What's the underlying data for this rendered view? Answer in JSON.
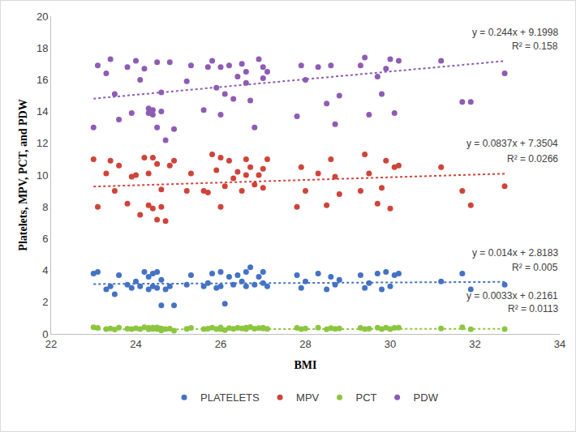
{
  "chart_data": {
    "type": "scatter",
    "x_label": "BMI",
    "y_label": "Platelets, MPV, PCT, and PDW",
    "xlim": [
      22,
      34
    ],
    "xticks": [
      22,
      24,
      26,
      28,
      30,
      32,
      34
    ],
    "ylim": [
      0,
      20
    ],
    "yticks": [
      0,
      2,
      4,
      6,
      8,
      10,
      12,
      14,
      16,
      18,
      20
    ],
    "grid": false,
    "legend": "bottom",
    "marker": "circle",
    "x": [
      23.0,
      23.1,
      23.3,
      23.4,
      23.5,
      23.6,
      23.8,
      23.9,
      24.0,
      24.1,
      24.2,
      24.3,
      24.3,
      24.4,
      24.4,
      24.5,
      24.5,
      24.6,
      24.6,
      24.7,
      24.8,
      24.9,
      25.2,
      25.3,
      25.6,
      25.7,
      25.8,
      25.9,
      26.0,
      26.0,
      26.1,
      26.2,
      26.3,
      26.4,
      26.5,
      26.6,
      26.6,
      26.7,
      26.8,
      26.9,
      27.0,
      27.0,
      27.1,
      27.8,
      27.9,
      28.0,
      28.3,
      28.5,
      28.6,
      28.7,
      28.8,
      29.3,
      29.4,
      29.5,
      29.7,
      29.8,
      29.9,
      30.0,
      30.1,
      30.2,
      31.2,
      31.7,
      31.9,
      32.7
    ],
    "series": [
      {
        "name": "PLATELETS",
        "color": "#4472c4",
        "line_style": "dotted",
        "trendline": {
          "slope": 0.014,
          "intercept": 2.8183,
          "equation": "y = 0.014x + 2.8183",
          "r2": "R² = 0.005"
        },
        "values": [
          3.8,
          3.9,
          2.8,
          3.0,
          2.5,
          3.7,
          3.1,
          2.9,
          3.3,
          3.0,
          3.9,
          2.8,
          3.6,
          3.8,
          3.0,
          2.9,
          3.9,
          3.4,
          1.8,
          2.8,
          3.0,
          1.8,
          3.1,
          3.7,
          3.0,
          3.2,
          3.8,
          2.9,
          3.9,
          3.0,
          1.9,
          3.6,
          3.1,
          3.7,
          3.3,
          3.9,
          3.0,
          4.2,
          3.1,
          3.6,
          3.2,
          3.9,
          3.0,
          3.7,
          2.9,
          3.3,
          3.8,
          2.8,
          3.6,
          3.1,
          3.4,
          3.7,
          2.9,
          3.2,
          3.8,
          2.8,
          3.9,
          3.0,
          3.7,
          3.8,
          3.3,
          3.8,
          2.8,
          3.1
        ]
      },
      {
        "name": "MPV",
        "color": "#d0433a",
        "line_style": "dotted",
        "trendline": {
          "slope": 0.0837,
          "intercept": 7.3504,
          "equation": "y = 0.0837x + 7.3504",
          "r2": "R² = 0.0266"
        },
        "values": [
          11.0,
          8.0,
          10.1,
          10.9,
          9.0,
          10.6,
          8.2,
          9.9,
          10.0,
          7.5,
          11.1,
          8.1,
          10.1,
          11.1,
          7.9,
          10.7,
          7.2,
          9.1,
          8.0,
          7.1,
          10.6,
          10.9,
          9.0,
          10.1,
          9.0,
          8.9,
          11.3,
          10.3,
          11.1,
          8.0,
          9.3,
          10.9,
          9.8,
          10.2,
          9.0,
          11.0,
          10.0,
          10.5,
          9.4,
          10.0,
          9.2,
          10.4,
          11.0,
          8.0,
          10.5,
          9.0,
          10.1,
          8.1,
          11.0,
          9.9,
          8.8,
          9.0,
          11.3,
          10.1,
          8.2,
          9.2,
          10.9,
          7.9,
          10.5,
          10.6,
          10.5,
          9.0,
          8.1,
          9.3
        ]
      },
      {
        "name": "PCT",
        "color": "#8cc63f",
        "line_style": "dotted",
        "trendline": {
          "slope": 0.0033,
          "intercept": 0.2161,
          "equation": "y = 0.0033x + 0.2161",
          "r2": "R² = 0.0113"
        },
        "values": [
          0.42,
          0.38,
          0.3,
          0.35,
          0.28,
          0.4,
          0.33,
          0.3,
          0.36,
          0.31,
          0.42,
          0.29,
          0.38,
          0.4,
          0.32,
          0.3,
          0.41,
          0.35,
          0.22,
          0.3,
          0.33,
          0.21,
          0.32,
          0.38,
          0.3,
          0.33,
          0.4,
          0.31,
          0.41,
          0.3,
          0.24,
          0.37,
          0.32,
          0.38,
          0.35,
          0.4,
          0.31,
          0.44,
          0.33,
          0.37,
          0.34,
          0.4,
          0.32,
          0.38,
          0.3,
          0.35,
          0.39,
          0.29,
          0.37,
          0.32,
          0.35,
          0.38,
          0.3,
          0.33,
          0.39,
          0.3,
          0.4,
          0.31,
          0.38,
          0.39,
          0.34,
          0.42,
          0.29,
          0.3
        ]
      },
      {
        "name": "PDW",
        "color": "#8e5bb5",
        "line_style": "dotted",
        "trendline": {
          "slope": 0.244,
          "intercept": 9.1998,
          "equation": "y = 0.244x + 9.1998",
          "r2": "R² = 0.158"
        },
        "values": [
          13.0,
          16.9,
          16.4,
          17.3,
          15.1,
          13.5,
          16.8,
          13.9,
          17.2,
          16.0,
          16.7,
          14.2,
          13.9,
          14.1,
          13.8,
          17.1,
          13.0,
          15.2,
          14.0,
          12.2,
          17.1,
          12.9,
          15.9,
          16.9,
          14.1,
          16.8,
          17.2,
          15.5,
          16.8,
          13.8,
          15.1,
          16.9,
          14.8,
          16.2,
          17.0,
          15.8,
          16.5,
          14.7,
          13.0,
          17.3,
          16.1,
          16.8,
          16.5,
          13.7,
          16.9,
          16.0,
          16.8,
          14.5,
          16.9,
          13.2,
          15.0,
          16.9,
          17.4,
          13.8,
          16.2,
          15.1,
          16.7,
          17.3,
          13.9,
          17.2,
          17.2,
          14.6,
          14.6,
          16.4
        ]
      }
    ]
  }
}
